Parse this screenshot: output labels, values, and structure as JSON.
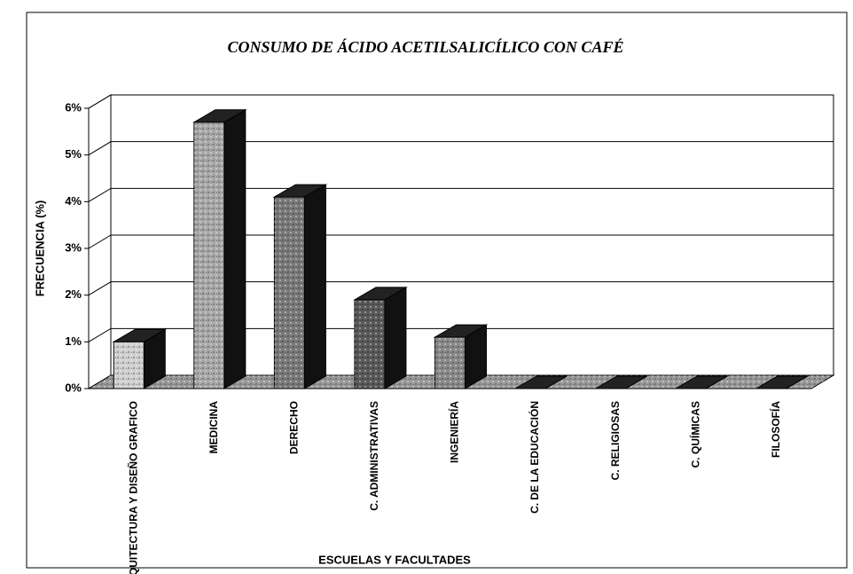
{
  "chart_data": {
    "type": "bar3d",
    "title": "CONSUMO DE ÁCIDO ACETILSALICÍLICO CON CAFÉ",
    "y_label": "FRECUENCIA (%)",
    "x_label": "ESCUELAS Y FACULTADES",
    "categories": [
      "ARQUITECTURA Y DISEÑO GRAFICO",
      "MEDICINA",
      "DERECHO",
      "C. ADMINISTRATIVAS",
      "INGENIERÍA",
      "C. DE LA EDUCACIÓN",
      "C. RELIGIOSAS",
      "C. QUÍMICAS",
      "FILOSOFÍA"
    ],
    "values": [
      1.0,
      5.7,
      4.1,
      1.9,
      1.1,
      0,
      0,
      0,
      0
    ],
    "colors": [
      "#cfcfcf",
      "#a8a8a8",
      "#7a7a7a",
      "#5a5a5a",
      "#8a8a8a",
      "#888888",
      "#888888",
      "#888888",
      "#888888"
    ],
    "ylim": [
      0,
      6
    ],
    "yticks": [
      {
        "value": 0,
        "label": "0%"
      },
      {
        "value": 1,
        "label": "1%"
      },
      {
        "value": 2,
        "label": "2%"
      },
      {
        "value": 3,
        "label": "3%"
      },
      {
        "value": 4,
        "label": "4%"
      },
      {
        "value": 5,
        "label": "5%"
      },
      {
        "value": 6,
        "label": "6%"
      }
    ],
    "grid": true
  }
}
